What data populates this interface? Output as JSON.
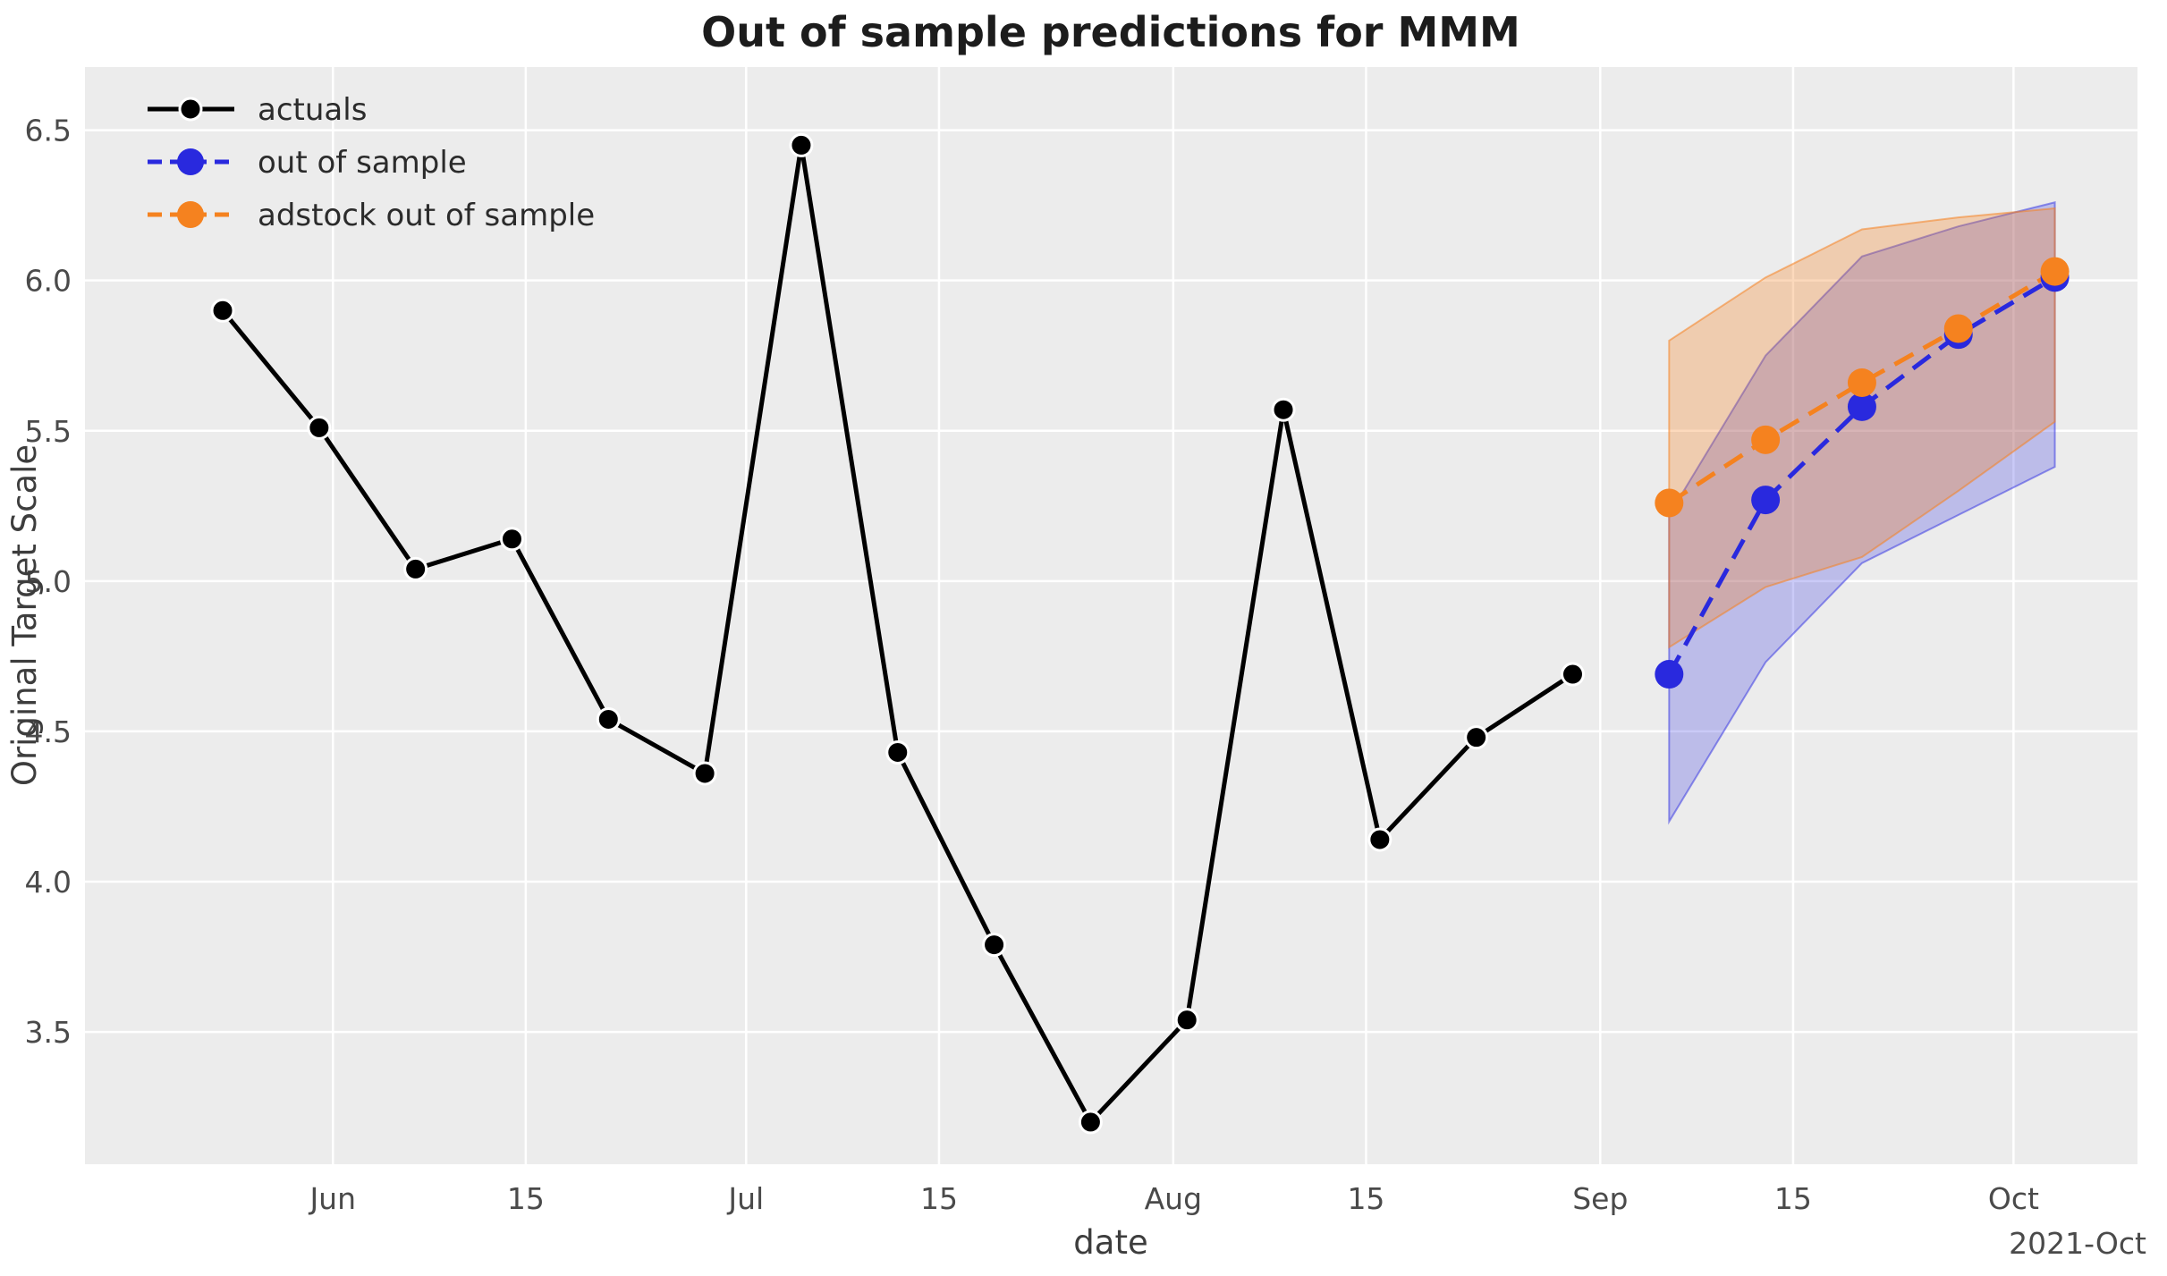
{
  "figure": {
    "title": "Out of sample predictions for MMM",
    "xlabel": "date",
    "ylabel": "Original Target Scale",
    "x_offset_label": "2021-Oct"
  },
  "chart_data": {
    "type": "line",
    "title": "Out of sample predictions for MMM",
    "xlabel": "date",
    "ylabel": "Original Target Scale",
    "x_axis_offset_text": "2021-Oct",
    "axes": {
      "xlim": [
        "2021-05-14",
        "2021-10-10"
      ],
      "ylim": [
        3.06,
        6.71
      ],
      "grid": true,
      "grid_color": "#ffffff",
      "background": "#ececec",
      "legend_position": "upper left",
      "tick_color": "#4a4a4a"
    },
    "x_ticks": [
      {
        "date": "2021-06-01",
        "label": "Jun"
      },
      {
        "date": "2021-06-15",
        "label": "15"
      },
      {
        "date": "2021-07-01",
        "label": "Jul"
      },
      {
        "date": "2021-07-15",
        "label": "15"
      },
      {
        "date": "2021-08-01",
        "label": "Aug"
      },
      {
        "date": "2021-08-15",
        "label": "15"
      },
      {
        "date": "2021-09-01",
        "label": "Sep"
      },
      {
        "date": "2021-09-15",
        "label": "15"
      },
      {
        "date": "2021-10-01",
        "label": "Oct"
      }
    ],
    "y_ticks": [
      {
        "value": 3.5,
        "label": "3.5"
      },
      {
        "value": 4.0,
        "label": "4.0"
      },
      {
        "value": 4.5,
        "label": "4.5"
      },
      {
        "value": 5.0,
        "label": "5.0"
      },
      {
        "value": 5.5,
        "label": "5.5"
      },
      {
        "value": 6.0,
        "label": "6.0"
      },
      {
        "value": 6.5,
        "label": "6.5"
      }
    ],
    "series": [
      {
        "name": "actuals",
        "style": "solid",
        "color": "#000000",
        "marker_edge": "#ffffff",
        "x": [
          "2021-05-24",
          "2021-05-31",
          "2021-06-07",
          "2021-06-14",
          "2021-06-21",
          "2021-06-28",
          "2021-07-05",
          "2021-07-12",
          "2021-07-19",
          "2021-07-26",
          "2021-08-02",
          "2021-08-09",
          "2021-08-16",
          "2021-08-23",
          "2021-08-30"
        ],
        "values": [
          5.9,
          5.51,
          5.04,
          5.14,
          4.54,
          4.36,
          6.45,
          4.43,
          3.79,
          3.2,
          3.54,
          5.57,
          4.14,
          4.48,
          4.69
        ]
      },
      {
        "name": "out of sample",
        "style": "dashed",
        "color": "#2929de",
        "x": [
          "2021-09-06",
          "2021-09-13",
          "2021-09-20",
          "2021-09-27",
          "2021-10-04"
        ],
        "values": [
          4.69,
          5.27,
          5.58,
          5.82,
          6.01
        ],
        "band_lower": [
          4.2,
          4.73,
          5.06,
          5.22,
          5.38
        ],
        "band_upper": [
          5.22,
          5.75,
          6.08,
          6.18,
          6.26
        ],
        "band_fill": "rgba(45,45,225,0.25)",
        "band_edge": "rgba(45,45,225,0.5)"
      },
      {
        "name": "adstock out of sample",
        "style": "dashed",
        "color": "#f5821f",
        "x": [
          "2021-09-06",
          "2021-09-13",
          "2021-09-20",
          "2021-09-27",
          "2021-10-04"
        ],
        "values": [
          5.26,
          5.47,
          5.66,
          5.84,
          6.03
        ],
        "band_lower": [
          4.78,
          4.98,
          5.08,
          5.3,
          5.53
        ],
        "band_upper": [
          5.8,
          6.01,
          6.17,
          6.21,
          6.24
        ],
        "band_fill": "rgba(245,130,32,0.30)",
        "band_edge": "rgba(245,130,32,0.55)"
      }
    ]
  }
}
